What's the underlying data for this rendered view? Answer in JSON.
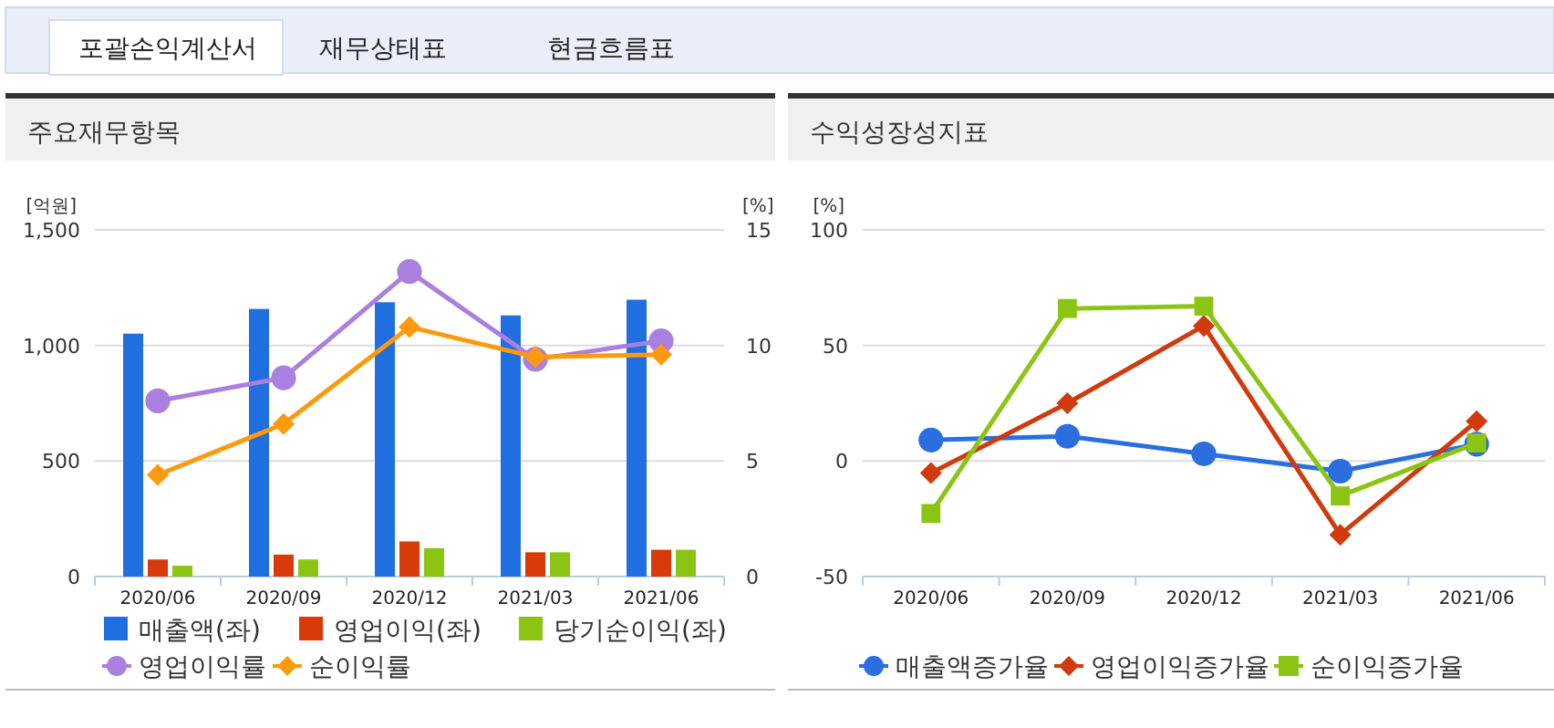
{
  "chart_data": [
    {
      "type": "bar",
      "title": "주요재무항목",
      "annotations": [
        "포괄손익계산서",
        "재무상태표",
        "현금흐름표"
      ],
      "ylabel": "[억원]",
      "y2label": "[%]",
      "categories": [
        "2020/06",
        "2020/09",
        "2020/12",
        "2021/03",
        "2021/06"
      ],
      "series": [
        {
          "name": "매출액(좌)",
          "color": "#1f6fe0",
          "values": [
            1051,
            1158,
            1187,
            1130,
            1198
          ]
        },
        {
          "name": "영업이익(좌)",
          "color": "#d93a0a",
          "values": [
            74,
            95,
            152,
            105,
            116
          ]
        },
        {
          "name": "당기순이익(좌)",
          "color": "#8cc414",
          "values": [
            47,
            74,
            123,
            105,
            116
          ]
        },
        {
          "name": "영업이익률",
          "type": "line",
          "axis": "y2",
          "marker": "circle",
          "color": "#a97fe0",
          "values": [
            7.6,
            8.6,
            13.2,
            9.4,
            10.2
          ]
        },
        {
          "name": "순이익률",
          "type": "line",
          "axis": "y2",
          "marker": "diamond",
          "color": "#ff9a0e",
          "values": [
            4.4,
            6.6,
            10.8,
            9.5,
            9.6
          ]
        }
      ],
      "ylim": [
        0,
        1500
      ],
      "yticks": [
        0,
        {
          "value": 500,
          "label": "500"
        },
        {
          "value": 1000,
          "label": "1,000"
        },
        {
          "value": 1500,
          "label": "1,500"
        }
      ],
      "y2lim": [
        0,
        15
      ],
      "y2ticks": [
        0,
        5,
        10,
        15
      ],
      "grid": "y",
      "legend": "bottom"
    },
    {
      "type": "line",
      "title": "수익성장성지표",
      "ylabel": "[%]",
      "categories": [
        "2020/06",
        "2020/09",
        "2020/12",
        "2021/03",
        "2021/06"
      ],
      "series": [
        {
          "name": "매출액증가율",
          "marker": "circle",
          "color": "#2a6ee0",
          "values": [
            9.1,
            10.7,
            3.1,
            -4.4,
            7.3
          ]
        },
        {
          "name": "영업이익증가율",
          "marker": "diamond",
          "color": "#d03a0c",
          "values": [
            -5.2,
            25,
            58.5,
            -31.9,
            17.2
          ]
        },
        {
          "name": "순이익증가율",
          "marker": "square",
          "color": "#8cc414",
          "values": [
            -22.7,
            66,
            67,
            -15.1,
            7.8
          ]
        }
      ],
      "ylim": [
        -50,
        100
      ],
      "yticks": [
        -50,
        0,
        50,
        100
      ],
      "grid": "y",
      "legend": "bottom"
    }
  ]
}
